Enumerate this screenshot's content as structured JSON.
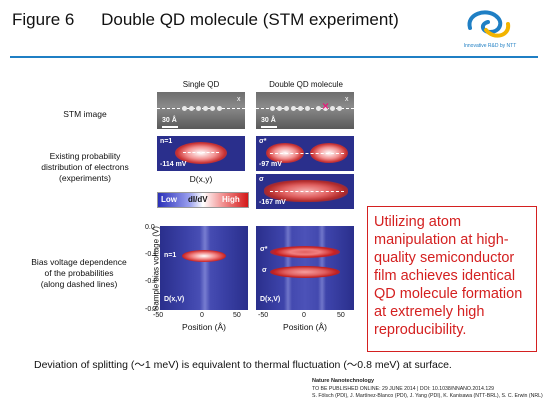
{
  "header": {
    "figure_label": "Figure 6",
    "title_part1": "Double QD molecule",
    "title_part2": "(STM experiment)",
    "logo_text": "Innovative R&D by NTT"
  },
  "columns": {
    "single": "Single QD",
    "double": "Double QD molecule"
  },
  "rows": {
    "stm": "STM image",
    "prob_line1": "Existing probability",
    "prob_line2": "distribution of electrons",
    "prob_line3": "(experiments)",
    "bias_line1": "Bias voltage dependence",
    "bias_line2": "of the probabilities",
    "bias_line3": "(along dashed lines)"
  },
  "stm_panels": {
    "scale_single": "30 Å",
    "scale_double": "30 Å",
    "x_mark": "x"
  },
  "map_panels": {
    "single_state": "n=1",
    "single_energy": "-114 mV",
    "double_top_state": "σ*",
    "double_top_energy": "-97 mV",
    "double_bottom_state": "σ",
    "double_bottom_energy": "-167 mV",
    "dxy_label": "D(x,y)"
  },
  "colorbar": {
    "low": "Low",
    "mid": "dI/dV",
    "high": "High"
  },
  "bias_plots": {
    "ylabel": "Sample bias voltage  (V)",
    "yticks": [
      "0.0",
      "-0.1",
      "-0.2",
      "-0.3"
    ],
    "xticks_single": [
      "-50",
      "0",
      "50"
    ],
    "xticks_double": [
      "-50",
      "0",
      "50"
    ],
    "xlabel": "Position (Å)",
    "single_state": "n=1",
    "double_state_upper": "σ*",
    "double_state_lower": "σ",
    "dxv_label": "D(x,V)"
  },
  "note": {
    "text": "Utilizing atom manipulation at high-quality semiconductor film achieves identical QD molecule formation at extremely high reproducibility."
  },
  "footer": {
    "deviation": "Deviation of splitting (～1 meV) is equivalent to thermal fluctuation (～0.8 meV) at surface.",
    "cite_line1": "Nature Nanotechnology",
    "cite_line2": "TO BE PUBLISHED ONLINE: 29 JUNE 2014 | DOI: 10.1038/NNANO.2014.129",
    "cite_line3": "S. Fölsch (PDI), J. Martínez-Blanco (PDI), J. Yang (PDI), K. Kanisawa (NTT-BRL), S. C. Erwin (NRL)"
  },
  "colors": {
    "accent_blue": "#1f7fc4",
    "note_red": "#d42020",
    "map_blue": "#2a2f8c",
    "hot_red": "#d41818"
  }
}
